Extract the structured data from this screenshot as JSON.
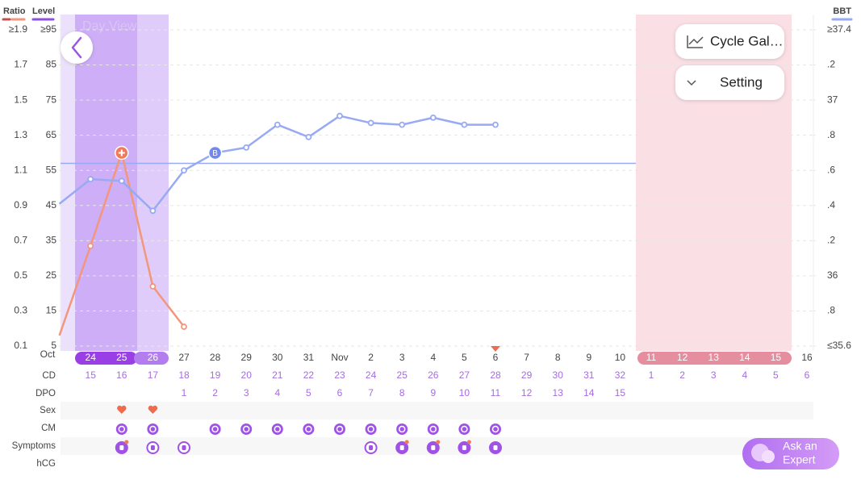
{
  "header": {
    "day_view": "Day View"
  },
  "buttons": {
    "cycle": "Cycle Gal…",
    "setting": "Setting",
    "expert_line1": "Ask an",
    "expert_line2": "Expert"
  },
  "chart_data": {
    "type": "line",
    "month_label": "Oct",
    "level_label": "Level",
    "categories": [
      null,
      "24",
      "25",
      "26",
      "27",
      "28",
      "29",
      "30",
      "31",
      "Nov",
      "2",
      "3",
      "4",
      "5",
      "6",
      "7",
      "8",
      "9",
      "10",
      "11",
      "12",
      "13",
      "14",
      "15",
      "16"
    ],
    "ylim": [
      0.1,
      1.9
    ],
    "yticks": [
      {
        "value": 1.9,
        "label": "≥1.9"
      },
      1.7,
      1.5,
      1.3,
      1.1,
      0.9,
      0.7,
      0.5,
      0.3,
      0.1
    ],
    "level_lim": [
      5,
      95
    ],
    "level_ticks": [
      {
        "value": 95,
        "label": "≥95"
      },
      85,
      75,
      65,
      55,
      45,
      35,
      25,
      15,
      5
    ],
    "y2lim": [
      35.6,
      37.4
    ],
    "y2ticks": [
      {
        "value": 37.4,
        "label": "≥37.4"
      },
      {
        "value": 37.2,
        "label": ".2"
      },
      37,
      {
        "value": 36.8,
        "label": ".8"
      },
      {
        "value": 36.6,
        "label": ".6"
      },
      {
        "value": 36.4,
        "label": ".4"
      },
      {
        "value": 36.2,
        "label": ".2"
      },
      36,
      {
        "value": 35.8,
        "label": ".8"
      },
      {
        "value": 35.6,
        "label": "≤35.6"
      }
    ],
    "series": [
      {
        "name": "Ratio",
        "color": "#f2977b",
        "values": [
          0.16,
          0.67,
          1.2,
          0.44,
          0.21,
          null,
          null,
          null,
          null,
          null,
          null,
          null,
          null,
          null,
          null,
          null,
          null,
          null,
          null,
          null,
          null,
          null,
          null,
          null,
          null
        ]
      },
      {
        "name": "BBT",
        "color": "#97aaf3",
        "axis": "y2",
        "values": [
          36.41,
          36.55,
          36.54,
          36.37,
          36.6,
          36.7,
          36.73,
          36.86,
          36.79,
          36.91,
          36.87,
          36.86,
          36.9,
          36.86,
          36.86,
          null,
          null,
          null,
          null,
          null,
          null,
          null,
          null,
          null,
          null
        ]
      }
    ],
    "coverline": 36.64,
    "annotation": "B",
    "grid": true
  },
  "rows": {
    "labels": [
      "CD",
      "DPO",
      "Sex",
      "CM",
      "Symptoms",
      "hCG"
    ],
    "cd": [
      null,
      15,
      16,
      17,
      18,
      19,
      20,
      21,
      22,
      23,
      24,
      25,
      26,
      27,
      28,
      29,
      30,
      31,
      32,
      1,
      2,
      3,
      4,
      5,
      6
    ],
    "dpo": [
      null,
      null,
      null,
      null,
      1,
      2,
      3,
      4,
      5,
      6,
      7,
      8,
      9,
      10,
      11,
      12,
      13,
      14,
      15,
      null,
      null,
      null,
      null,
      null,
      null
    ]
  }
}
